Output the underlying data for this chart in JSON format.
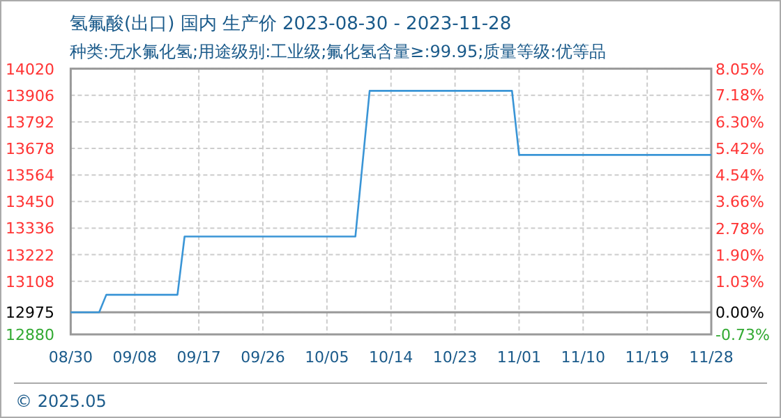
{
  "chart_data": {
    "type": "line",
    "title": "氢氟酸(出口) 国内 生产价 2023-08-30 - 2023-11-28",
    "subtitle": "种类:无水氟化氢;用途级别:工业级;氟化氢含量≥:99.95;质量等级:优等品",
    "x": [
      "2023-08-30",
      "2023-09-03",
      "2023-09-04",
      "2023-09-14",
      "2023-09-15",
      "2023-10-09",
      "2023-10-11",
      "2023-10-31",
      "2023-11-01",
      "2023-11-28"
    ],
    "series": [
      {
        "color": "#3a95d6",
        "values": [
          12975,
          12975,
          13050,
          13050,
          13300,
          13300,
          13925,
          13925,
          13650,
          13650
        ]
      }
    ],
    "xlim": [
      "2023-08-30",
      "2023-11-28"
    ],
    "xticks": [
      {
        "value": "2023-08-30",
        "label": "08/30"
      },
      {
        "value": "2023-09-08",
        "label": "09/08"
      },
      {
        "value": "2023-09-17",
        "label": "09/17"
      },
      {
        "value": "2023-09-26",
        "label": "09/26"
      },
      {
        "value": "2023-10-05",
        "label": "10/05"
      },
      {
        "value": "2023-10-14",
        "label": "10/14"
      },
      {
        "value": "2023-10-23",
        "label": "10/23"
      },
      {
        "value": "2023-11-01",
        "label": "11/01"
      },
      {
        "value": "2023-11-10",
        "label": "11/10"
      },
      {
        "value": "2023-11-19",
        "label": "11/19"
      },
      {
        "value": "2023-11-28",
        "label": "11/28"
      }
    ],
    "ylim": [
      12880,
      14020
    ],
    "yticks": [
      12880,
      12975,
      13108,
      13222,
      13336,
      13450,
      13564,
      13678,
      13792,
      13906,
      14020
    ],
    "y2lim": [
      -0.73,
      8.05
    ],
    "y2ticks": [
      {
        "value": -0.73,
        "label": "-0.73%"
      },
      {
        "value": 0,
        "label": "0.00%"
      },
      {
        "value": 1.03,
        "label": "1.03%"
      },
      {
        "value": 1.9,
        "label": "1.90%"
      },
      {
        "value": 2.78,
        "label": "2.78%"
      },
      {
        "value": 3.66,
        "label": "3.66%"
      },
      {
        "value": 4.54,
        "label": "4.54%"
      },
      {
        "value": 5.42,
        "label": "5.42%"
      },
      {
        "value": 6.3,
        "label": "6.30%"
      },
      {
        "value": 7.18,
        "label": "7.18%"
      },
      {
        "value": 8.05,
        "label": "8.05%"
      }
    ],
    "ref_lines": [
      {
        "axis": "y",
        "value": 12975,
        "color": "#999999"
      }
    ],
    "grid": true,
    "annotations": [
      "© 2025.05"
    ]
  }
}
